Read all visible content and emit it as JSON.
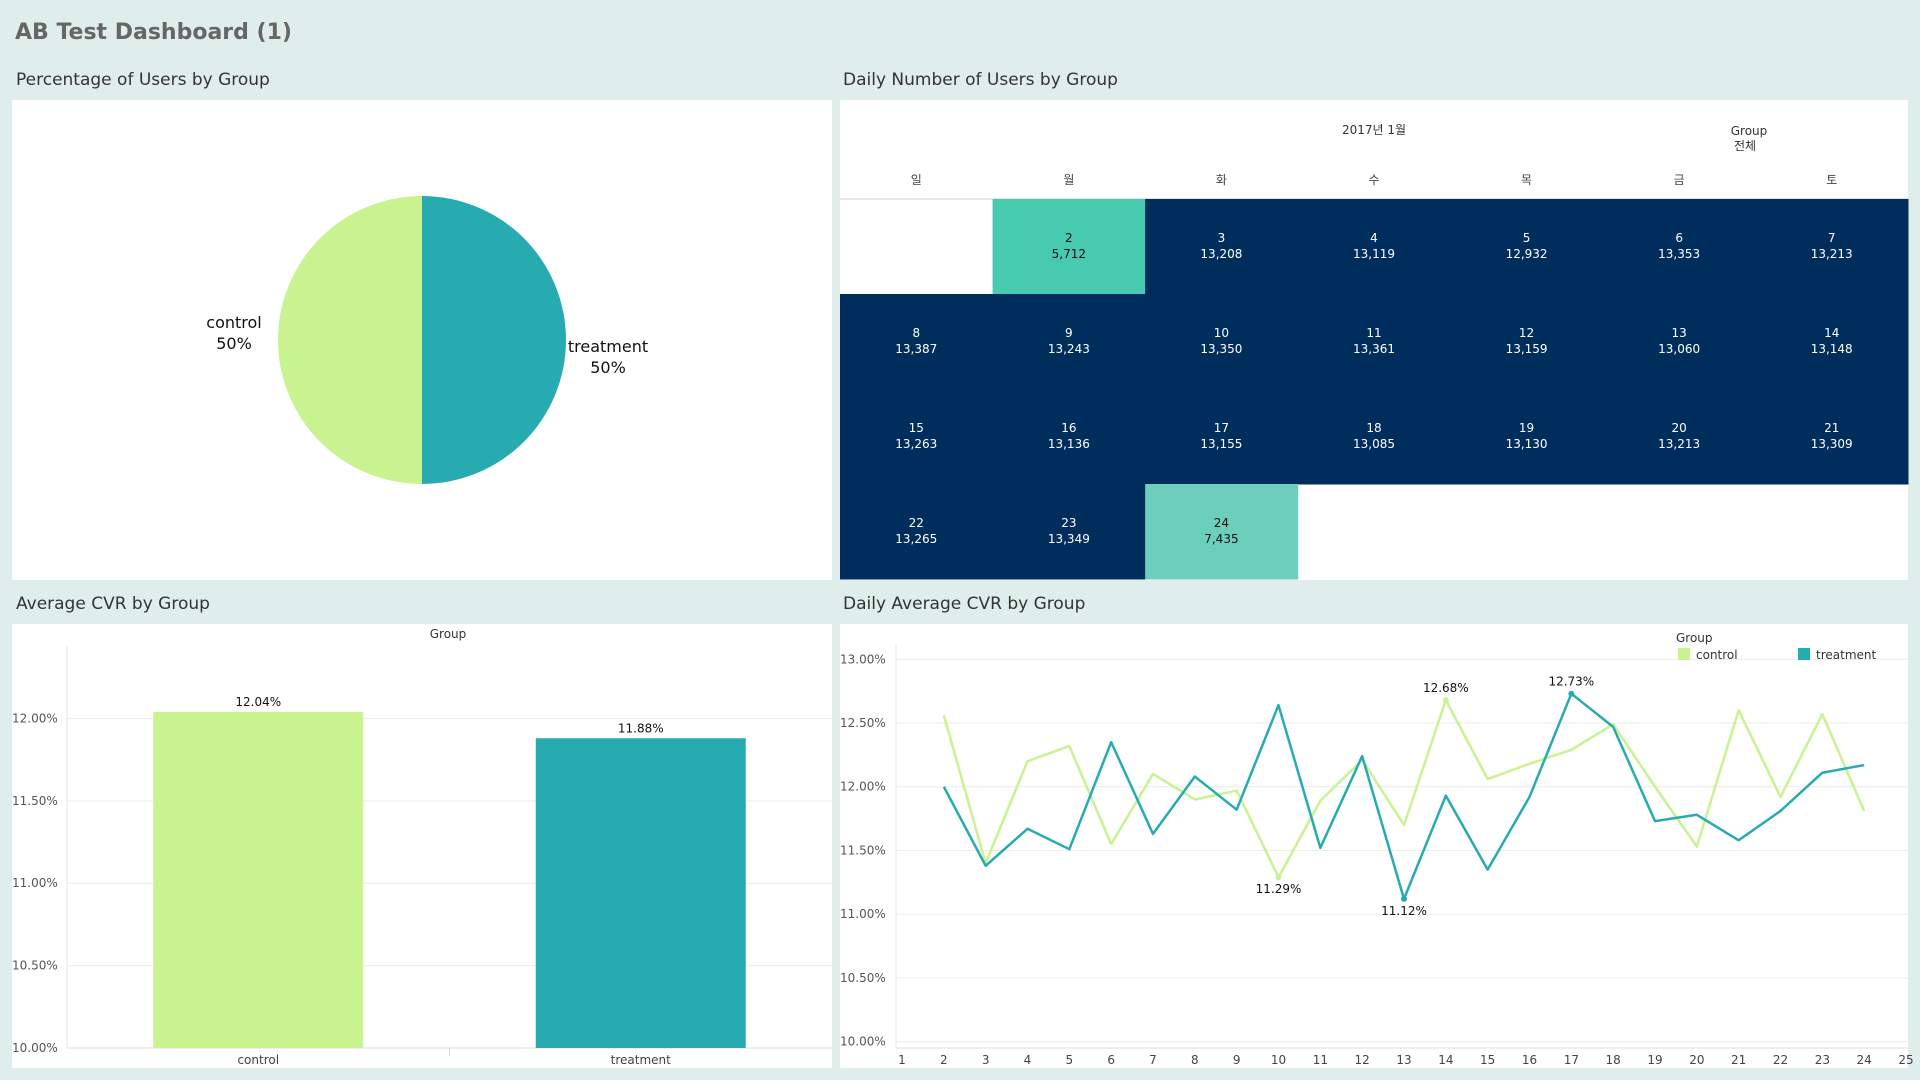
{
  "dashboard": {
    "title": "AB Test Dashboard (1)"
  },
  "sheets": {
    "pie_title": "Percentage of Users by Group",
    "calendar_title": "Daily Number of Users by Group",
    "bar_title": "Average CVR by Group",
    "line_title": "Daily Average CVR by Group"
  },
  "colors": {
    "control": "#c9f291",
    "treatment": "#27abb1",
    "cal_high": "#002e5c",
    "cal_mid": "#48cab0",
    "cal_low": "#6ccfbc",
    "background": "#e0eeeb"
  },
  "calendar": {
    "month_label": "2017년 1월",
    "group_label": "Group",
    "group_value": "전체",
    "weekdays": [
      "일",
      "월",
      "화",
      "수",
      "목",
      "금",
      "토"
    ],
    "days": [
      {
        "day": "2",
        "users": "5,712",
        "col": 1,
        "row": 0,
        "tone": "mid"
      },
      {
        "day": "3",
        "users": "13,208",
        "col": 2,
        "row": 0,
        "tone": "high"
      },
      {
        "day": "4",
        "users": "13,119",
        "col": 3,
        "row": 0,
        "tone": "high"
      },
      {
        "day": "5",
        "users": "12,932",
        "col": 4,
        "row": 0,
        "tone": "high"
      },
      {
        "day": "6",
        "users": "13,353",
        "col": 5,
        "row": 0,
        "tone": "high"
      },
      {
        "day": "7",
        "users": "13,213",
        "col": 6,
        "row": 0,
        "tone": "high"
      },
      {
        "day": "8",
        "users": "13,387",
        "col": 0,
        "row": 1,
        "tone": "high"
      },
      {
        "day": "9",
        "users": "13,243",
        "col": 1,
        "row": 1,
        "tone": "high"
      },
      {
        "day": "10",
        "users": "13,350",
        "col": 2,
        "row": 1,
        "tone": "high"
      },
      {
        "day": "11",
        "users": "13,361",
        "col": 3,
        "row": 1,
        "tone": "high"
      },
      {
        "day": "12",
        "users": "13,159",
        "col": 4,
        "row": 1,
        "tone": "high"
      },
      {
        "day": "13",
        "users": "13,060",
        "col": 5,
        "row": 1,
        "tone": "high"
      },
      {
        "day": "14",
        "users": "13,148",
        "col": 6,
        "row": 1,
        "tone": "high"
      },
      {
        "day": "15",
        "users": "13,263",
        "col": 0,
        "row": 2,
        "tone": "high"
      },
      {
        "day": "16",
        "users": "13,136",
        "col": 1,
        "row": 2,
        "tone": "high"
      },
      {
        "day": "17",
        "users": "13,155",
        "col": 2,
        "row": 2,
        "tone": "high"
      },
      {
        "day": "18",
        "users": "13,085",
        "col": 3,
        "row": 2,
        "tone": "high"
      },
      {
        "day": "19",
        "users": "13,130",
        "col": 4,
        "row": 2,
        "tone": "high"
      },
      {
        "day": "20",
        "users": "13,213",
        "col": 5,
        "row": 2,
        "tone": "high"
      },
      {
        "day": "21",
        "users": "13,309",
        "col": 6,
        "row": 2,
        "tone": "high"
      },
      {
        "day": "22",
        "users": "13,265",
        "col": 0,
        "row": 3,
        "tone": "high"
      },
      {
        "day": "23",
        "users": "13,349",
        "col": 1,
        "row": 3,
        "tone": "high"
      },
      {
        "day": "24",
        "users": "7,435",
        "col": 2,
        "row": 3,
        "tone": "low"
      }
    ]
  },
  "chart_data": [
    {
      "type": "pie",
      "title": "Percentage of Users by Group",
      "slices": [
        {
          "name": "treatment",
          "value": 50,
          "label": "treatment",
          "pct_label": "50%"
        },
        {
          "name": "control",
          "value": 50,
          "label": "control",
          "pct_label": "50%"
        }
      ]
    },
    {
      "type": "bar",
      "title": "Average CVR by Group",
      "header": "Group",
      "categories": [
        "control",
        "treatment"
      ],
      "values": [
        12.04,
        11.88
      ],
      "value_labels": [
        "12.04%",
        "11.88%"
      ],
      "ylim": [
        10.0,
        12.44
      ],
      "yticks": [
        10.0,
        10.5,
        11.0,
        11.5,
        12.0
      ],
      "ytick_labels": [
        "10.00%",
        "10.50%",
        "11.00%",
        "11.50%",
        "12.00%"
      ],
      "grid": true
    },
    {
      "type": "line",
      "title": "Daily Average CVR by Group",
      "legend_title": "Group",
      "legend_position": "top-right",
      "x": [
        2,
        3,
        4,
        5,
        6,
        7,
        8,
        9,
        10,
        11,
        12,
        13,
        14,
        15,
        16,
        17,
        18,
        19,
        20,
        21,
        22,
        23,
        24
      ],
      "xlim": [
        1,
        25
      ],
      "xticks": [
        1,
        2,
        3,
        4,
        5,
        6,
        7,
        8,
        9,
        10,
        11,
        12,
        13,
        14,
        15,
        16,
        17,
        18,
        19,
        20,
        21,
        22,
        23,
        24,
        25
      ],
      "ylim": [
        9.95,
        13.12
      ],
      "yticks": [
        10.0,
        10.5,
        11.0,
        11.5,
        12.0,
        12.5,
        13.0
      ],
      "ytick_labels": [
        "10.00%",
        "10.50%",
        "11.00%",
        "11.50%",
        "12.00%",
        "12.50%",
        "13.00%"
      ],
      "grid": true,
      "series": [
        {
          "name": "control",
          "values": [
            12.56,
            11.4,
            12.2,
            12.32,
            11.55,
            12.1,
            11.9,
            11.97,
            11.29,
            11.89,
            12.21,
            11.7,
            12.68,
            12.06,
            12.18,
            12.29,
            12.49,
            12.0,
            11.53,
            12.6,
            11.92,
            12.57,
            11.81
          ]
        },
        {
          "name": "treatment",
          "values": [
            12.0,
            11.38,
            11.67,
            11.51,
            12.35,
            11.63,
            12.08,
            11.82,
            12.64,
            11.52,
            12.24,
            11.12,
            11.93,
            11.35,
            11.92,
            12.73,
            12.47,
            11.73,
            11.78,
            11.58,
            11.81,
            12.11,
            12.17
          ]
        }
      ],
      "annotations": [
        {
          "series": "control",
          "x": 10,
          "label": "11.29%",
          "pos": "below"
        },
        {
          "series": "treatment",
          "x": 13,
          "label": "11.12%",
          "pos": "below"
        },
        {
          "series": "control",
          "x": 14,
          "label": "12.68%",
          "pos": "above"
        },
        {
          "series": "treatment",
          "x": 17,
          "label": "12.73%",
          "pos": "above"
        }
      ]
    }
  ]
}
